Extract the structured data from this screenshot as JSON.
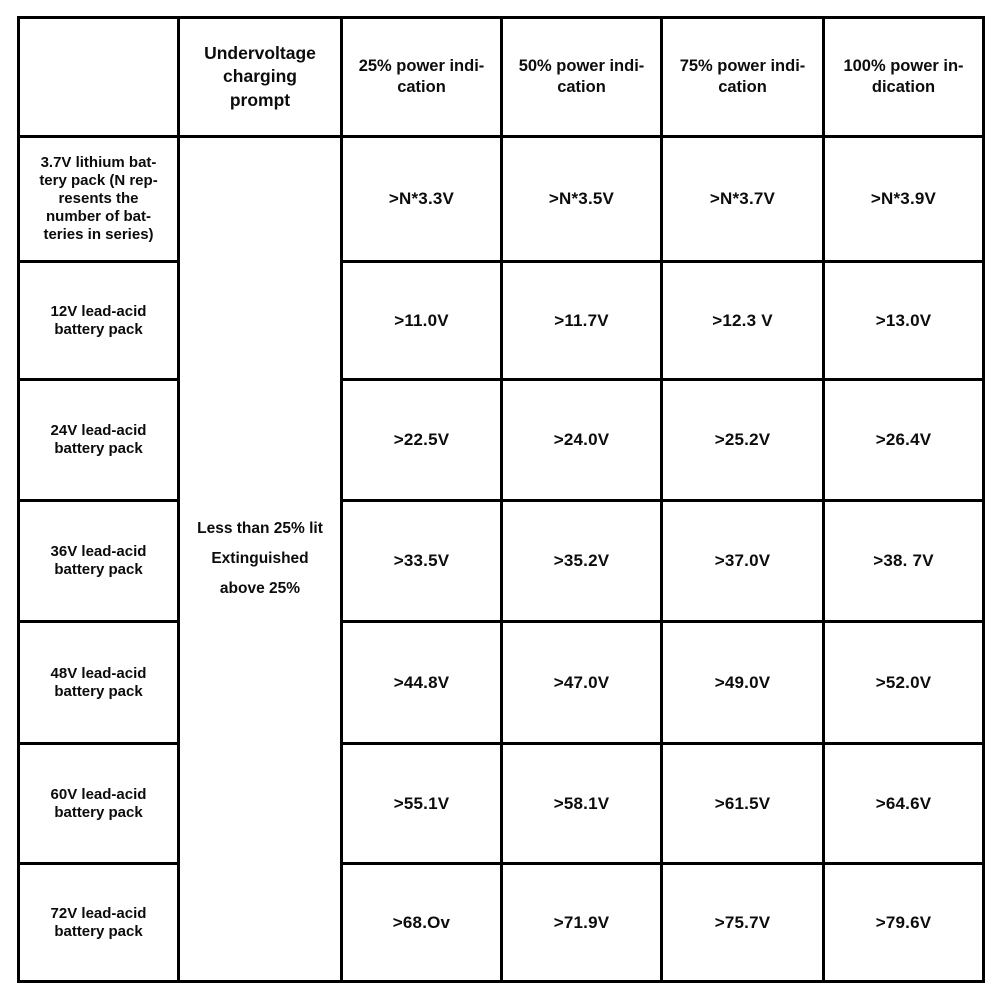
{
  "table": {
    "header": {
      "corner": "",
      "prompt": "Undervoltage\ncharging\nprompt",
      "power_cols": [
        "25% power indi-\ncation",
        "50% power indi-\ncation",
        "75% power indi-\ncation",
        "100% power in-\ndication"
      ]
    },
    "prompt_cell": "Less than 25% lit\nExtinguished\nabove 25%",
    "rows": [
      {
        "label": "3.7V lithium bat-\ntery pack (N rep-\nresents the\nnumber of bat-\nteries in series)",
        "values": [
          ">N*3.3V",
          ">N*3.5V",
          ">N*3.7V",
          ">N*3.9V"
        ]
      },
      {
        "label": "12V lead-acid\nbattery pack",
        "values": [
          ">11.0V",
          ">11.7V",
          ">12.3 V",
          ">13.0V"
        ]
      },
      {
        "label": "24V lead-acid\nbattery pack",
        "values": [
          ">22.5V",
          ">24.0V",
          ">25.2V",
          ">26.4V"
        ]
      },
      {
        "label": "36V lead-acid\nbattery pack",
        "values": [
          ">33.5V",
          ">35.2V",
          ">37.0V",
          ">38. 7V"
        ]
      },
      {
        "label": "48V lead-acid\nbattery pack",
        "values": [
          ">44.8V",
          ">47.0V",
          ">49.0V",
          ">52.0V"
        ]
      },
      {
        "label": "60V lead-acid\nbattery pack",
        "values": [
          ">55.1V",
          ">58.1V",
          ">61.5V",
          ">64.6V"
        ]
      },
      {
        "label": "72V lead-acid\nbattery pack",
        "values": [
          ">68.Ov",
          ">71.9V",
          ">75.7V",
          ">79.6V"
        ]
      }
    ],
    "colors": {
      "accent_red": "#ee0f0f",
      "border": "#000000",
      "text": "#0c0c0c",
      "background": "#ffffff"
    }
  }
}
